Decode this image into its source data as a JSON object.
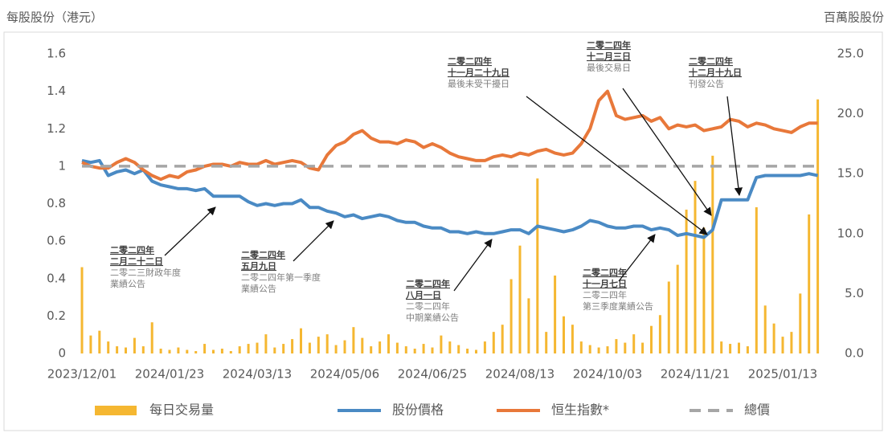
{
  "chart_data": {
    "type": "combo",
    "y_label": "每股股份（港元）",
    "y2_label": "百萬股股份",
    "categories": [
      "2023/12/01",
      null,
      null,
      null,
      null,
      null,
      null,
      null,
      null,
      null,
      "2024/01/23",
      null,
      null,
      null,
      null,
      null,
      null,
      null,
      null,
      null,
      "2024/03/13",
      null,
      null,
      null,
      null,
      null,
      null,
      null,
      null,
      null,
      "2024/05/06",
      null,
      null,
      null,
      null,
      null,
      null,
      null,
      null,
      null,
      "2024/06/25",
      null,
      null,
      null,
      null,
      null,
      null,
      null,
      null,
      null,
      "2024/08/13",
      null,
      null,
      null,
      null,
      null,
      null,
      null,
      null,
      null,
      "2024/10/03",
      null,
      null,
      null,
      null,
      null,
      null,
      null,
      null,
      null,
      "2024/11/21",
      null,
      null,
      null,
      null,
      null,
      null,
      null,
      null,
      null,
      "2025/01/13",
      null,
      null,
      null,
      null
    ],
    "ylim": [
      0,
      1.6
    ],
    "yticks": [
      0,
      0.2,
      0.4,
      0.6,
      0.8,
      1,
      1.2,
      1.4,
      1.6
    ],
    "y2lim": [
      0,
      25
    ],
    "y2ticks": [
      {
        "value": 0,
        "label": "0.0"
      },
      {
        "value": 5,
        "label": "5.0"
      },
      {
        "value": 10,
        "label": "10.0"
      },
      {
        "value": 15,
        "label": "15.0"
      },
      {
        "value": 20,
        "label": "20.0"
      },
      {
        "value": 25,
        "label": "25.0"
      }
    ],
    "grid": false,
    "legend": "bottom",
    "series": [
      {
        "name": "每日交易量",
        "type": "bar",
        "axis": "y2",
        "color": "#f5b731",
        "values": [
          7.2,
          1.5,
          1.9,
          1.0,
          0.6,
          0.5,
          1.3,
          0.6,
          2.6,
          0.4,
          0.3,
          0.5,
          0.3,
          0.2,
          0.8,
          0.3,
          0.4,
          0.2,
          0.6,
          0.8,
          0.9,
          1.6,
          0.5,
          0.8,
          1.2,
          2.1,
          0.9,
          1.4,
          1.6,
          0.7,
          1.1,
          2.2,
          1.3,
          0.6,
          1.0,
          1.6,
          0.9,
          0.6,
          0.4,
          0.8,
          0.5,
          1.5,
          1.0,
          0.7,
          0.4,
          0.3,
          1.0,
          1.8,
          2.4,
          6.2,
          9.0,
          4.6,
          14.6,
          1.8,
          6.5,
          3.1,
          2.4,
          1.0,
          0.7,
          0.5,
          0.6,
          1.2,
          0.9,
          1.6,
          0.9,
          2.3,
          3.2,
          6.0,
          7.4,
          12.0,
          14.4,
          10.5,
          16.5,
          1.0,
          0.8,
          0.9,
          0.6,
          12.2,
          4.0,
          2.5,
          1.4,
          1.8,
          5.0,
          11.6,
          21.2
        ]
      },
      {
        "name": "股份價格",
        "type": "line",
        "color": "#4a8ac4",
        "values": [
          1.03,
          1.02,
          1.03,
          0.95,
          0.97,
          0.98,
          0.96,
          0.98,
          0.92,
          0.9,
          0.89,
          0.88,
          0.88,
          0.87,
          0.88,
          0.84,
          0.84,
          0.84,
          0.84,
          0.81,
          0.79,
          0.8,
          0.79,
          0.8,
          0.8,
          0.82,
          0.78,
          0.78,
          0.76,
          0.75,
          0.73,
          0.74,
          0.72,
          0.73,
          0.74,
          0.73,
          0.71,
          0.7,
          0.7,
          0.68,
          0.67,
          0.67,
          0.65,
          0.65,
          0.64,
          0.65,
          0.64,
          0.64,
          0.65,
          0.66,
          0.66,
          0.64,
          0.68,
          0.67,
          0.66,
          0.65,
          0.66,
          0.68,
          0.71,
          0.7,
          0.68,
          0.67,
          0.67,
          0.68,
          0.68,
          0.66,
          0.67,
          0.66,
          0.63,
          0.64,
          0.63,
          0.62,
          0.66,
          0.82,
          0.82,
          0.82,
          0.82,
          0.94,
          0.95,
          0.95,
          0.95,
          0.95,
          0.95,
          0.96,
          0.95
        ]
      },
      {
        "name": "恒生指數*",
        "type": "line",
        "color": "#e8783a",
        "values": [
          1.02,
          1.0,
          0.99,
          0.99,
          1.02,
          1.04,
          1.02,
          0.98,
          0.95,
          0.93,
          0.95,
          0.94,
          0.97,
          0.98,
          1.0,
          1.01,
          1.01,
          1.0,
          1.02,
          1.01,
          1.01,
          1.03,
          1.01,
          1.02,
          1.03,
          1.02,
          0.99,
          0.98,
          1.06,
          1.11,
          1.13,
          1.17,
          1.19,
          1.15,
          1.13,
          1.13,
          1.12,
          1.14,
          1.13,
          1.1,
          1.12,
          1.1,
          1.07,
          1.05,
          1.04,
          1.03,
          1.03,
          1.05,
          1.06,
          1.05,
          1.07,
          1.06,
          1.08,
          1.09,
          1.07,
          1.06,
          1.07,
          1.12,
          1.2,
          1.35,
          1.4,
          1.27,
          1.25,
          1.26,
          1.27,
          1.24,
          1.26,
          1.2,
          1.22,
          1.21,
          1.22,
          1.19,
          1.2,
          1.21,
          1.25,
          1.24,
          1.21,
          1.23,
          1.22,
          1.2,
          1.19,
          1.18,
          1.21,
          1.23,
          1.23
        ]
      },
      {
        "name": "總價",
        "type": "line",
        "dash": true,
        "color": "#a6a6a6",
        "values": [
          1,
          1,
          1,
          1,
          1,
          1,
          1,
          1,
          1,
          1,
          1,
          1,
          1,
          1,
          1,
          1,
          1,
          1,
          1,
          1,
          1,
          1,
          1,
          1,
          1,
          1,
          1,
          1,
          1,
          1,
          1,
          1,
          1,
          1,
          1,
          1,
          1,
          1,
          1,
          1,
          1,
          1,
          1,
          1,
          1,
          1,
          1,
          1,
          1,
          1,
          1,
          1,
          1,
          1,
          1,
          1,
          1,
          1,
          1,
          1,
          1,
          1,
          1,
          1,
          1,
          1,
          1,
          1,
          1,
          1,
          1,
          1,
          1,
          1,
          1,
          1,
          1,
          1,
          1,
          1,
          1,
          1,
          1,
          1,
          1
        ]
      }
    ],
    "annotations": [
      {
        "date_lines": [
          "二零二四年",
          "二月二十二日"
        ],
        "text_lines": [
          "二零二三財政年度",
          "業績公告"
        ]
      },
      {
        "date_lines": [
          "二零二四年",
          "五月九日"
        ],
        "text_lines": [
          "二零二四年第一季度",
          "業績公告"
        ]
      },
      {
        "date_lines": [
          "二零二四年",
          "八月一日"
        ],
        "text_lines": [
          "二零二四年",
          "中期業績公告"
        ]
      },
      {
        "date_lines": [
          "二零二四年",
          "十一月七日"
        ],
        "text_lines": [
          "二零二四年",
          "第三季度業績公告"
        ]
      },
      {
        "date_lines": [
          "二零二四年",
          "十一月二十九日"
        ],
        "text_lines": [
          "最後未受干擾日"
        ]
      },
      {
        "date_lines": [
          "二零二四年",
          "十二月三日"
        ],
        "text_lines": [
          "最後交易日"
        ]
      },
      {
        "date_lines": [
          "二零二四年",
          "十二月十九日"
        ],
        "text_lines": [
          "刊發公告"
        ]
      }
    ]
  }
}
